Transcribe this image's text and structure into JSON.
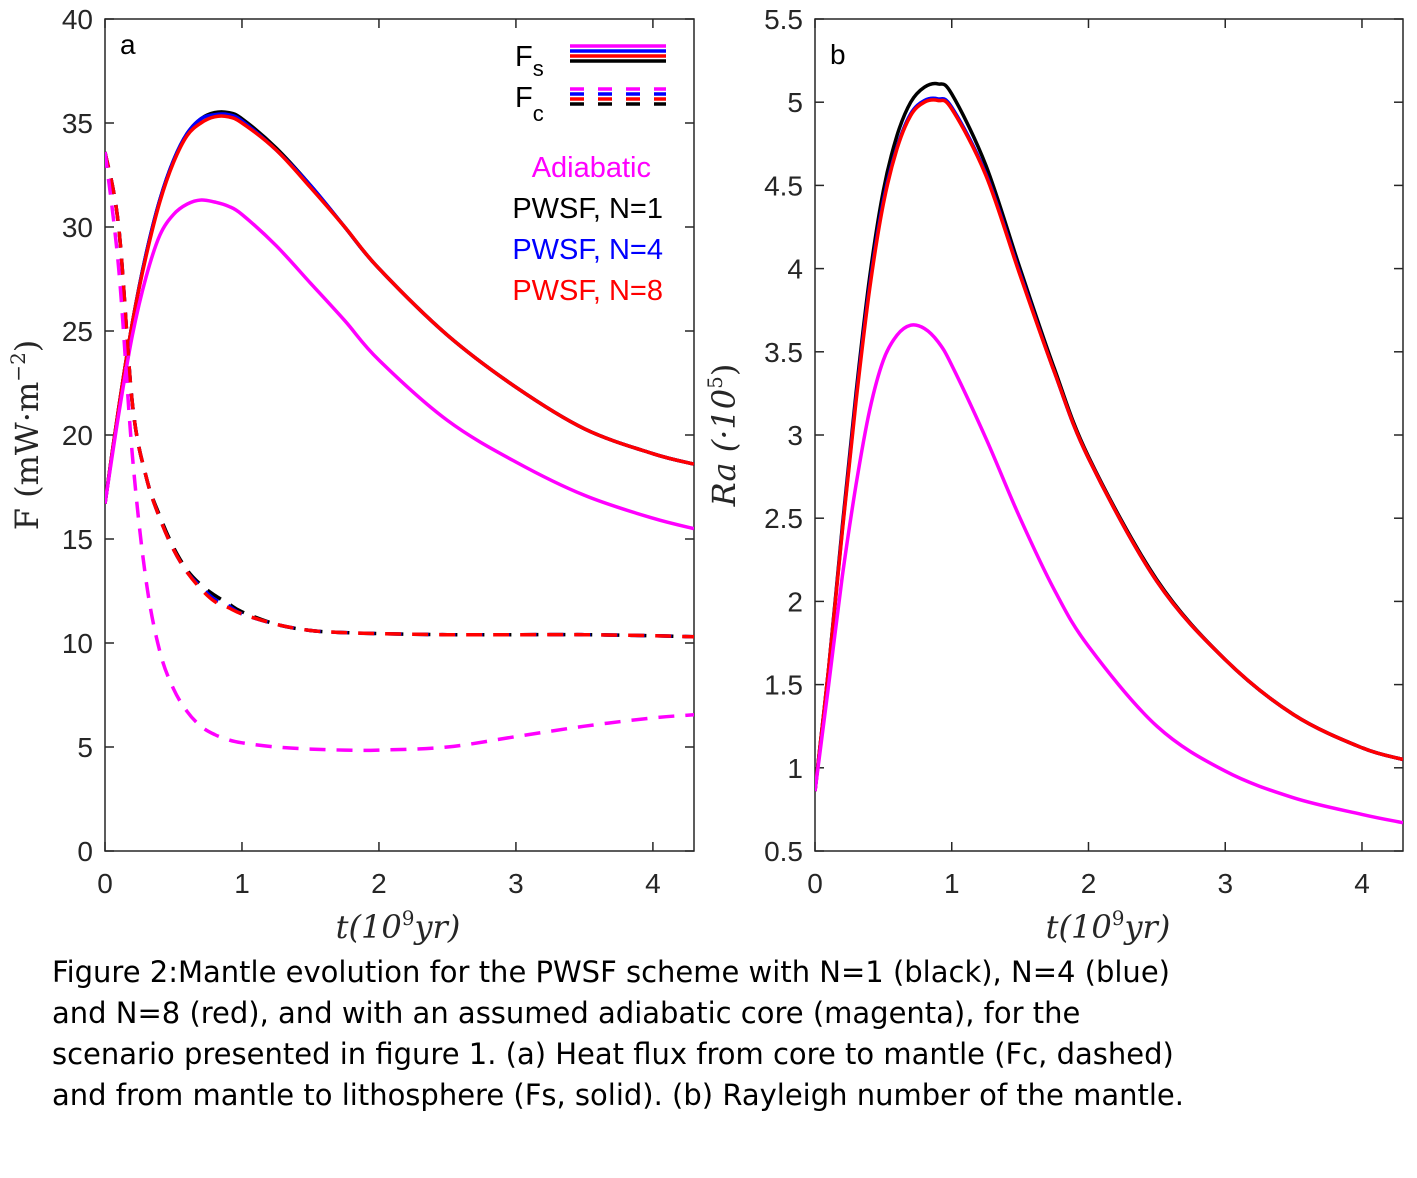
{
  "legend": {
    "fs_symbol": "F",
    "fs_sub": "s",
    "fc_symbol": "F",
    "fc_sub": "c",
    "entries": [
      {
        "label": "Adiabatic",
        "color": "#ff00ff"
      },
      {
        "label": "PWSF, N=1",
        "color": "#000000"
      },
      {
        "label": "PWSF, N=4",
        "color": "#0000ff"
      },
      {
        "label": "PWSF, N=8",
        "color": "#ff0000"
      }
    ]
  },
  "chart_data": [
    {
      "type": "line",
      "panel": "a",
      "xlabel": "t(10^9 yr)",
      "ylabel": "F (mW·m^-2)",
      "xlim": [
        0,
        4.3
      ],
      "ylim": [
        0,
        40
      ],
      "xticks": [
        "0",
        "1",
        "2",
        "3",
        "4"
      ],
      "yticks": [
        "0",
        "5",
        "10",
        "15",
        "20",
        "25",
        "30",
        "35",
        "40"
      ],
      "x": [
        0,
        0.1,
        0.2,
        0.3,
        0.4,
        0.5,
        0.6,
        0.7,
        0.8,
        0.9,
        1.0,
        1.25,
        1.5,
        1.75,
        2.0,
        2.5,
        3.0,
        3.5,
        4.0,
        4.3
      ],
      "series": [
        {
          "name": "PWSF, N=1",
          "quantity": "Fs",
          "style": "solid",
          "color": "#000000",
          "values": [
            16.7,
            21.3,
            25.4,
            28.7,
            31.3,
            33.2,
            34.5,
            35.2,
            35.5,
            35.5,
            35.2,
            33.8,
            32.0,
            30.0,
            28.0,
            24.8,
            22.3,
            20.3,
            19.1,
            18.6
          ]
        },
        {
          "name": "PWSF, N=4",
          "quantity": "Fs",
          "style": "solid",
          "color": "#0000ff",
          "values": [
            16.7,
            21.3,
            25.4,
            28.7,
            31.3,
            33.2,
            34.5,
            35.2,
            35.4,
            35.4,
            35.1,
            33.7,
            32.0,
            30.0,
            28.0,
            24.8,
            22.3,
            20.3,
            19.1,
            18.6
          ]
        },
        {
          "name": "PWSF, N=8",
          "quantity": "Fs",
          "style": "solid",
          "color": "#ff0000",
          "values": [
            16.7,
            21.3,
            25.4,
            28.6,
            31.2,
            33.1,
            34.4,
            35.0,
            35.3,
            35.3,
            35.0,
            33.7,
            31.9,
            30.0,
            28.0,
            24.8,
            22.3,
            20.3,
            19.1,
            18.6
          ]
        },
        {
          "name": "Adiabatic",
          "quantity": "Fs",
          "style": "solid",
          "color": "#ff00ff",
          "values": [
            16.7,
            21.0,
            24.8,
            27.6,
            29.6,
            30.6,
            31.1,
            31.3,
            31.2,
            31.0,
            30.6,
            29.1,
            27.3,
            25.5,
            23.6,
            20.7,
            18.7,
            17.1,
            16.0,
            15.5
          ]
        },
        {
          "name": "PWSF, N=1",
          "quantity": "Fc",
          "style": "dashed",
          "color": "#000000",
          "values": [
            33.6,
            30.0,
            21.5,
            18.0,
            16.1,
            14.6,
            13.5,
            12.8,
            12.3,
            11.9,
            11.5,
            10.9,
            10.6,
            10.5,
            10.45,
            10.4,
            10.4,
            10.4,
            10.35,
            10.3
          ]
        },
        {
          "name": "PWSF, N=4",
          "quantity": "Fc",
          "style": "dashed",
          "color": "#0000ff",
          "values": [
            33.6,
            30.0,
            21.5,
            18.0,
            16.0,
            14.5,
            13.4,
            12.7,
            12.1,
            11.8,
            11.4,
            10.9,
            10.6,
            10.5,
            10.45,
            10.4,
            10.4,
            10.4,
            10.35,
            10.3
          ]
        },
        {
          "name": "PWSF, N=8",
          "quantity": "Fc",
          "style": "dashed",
          "color": "#ff0000",
          "values": [
            33.6,
            30.0,
            21.5,
            18.0,
            16.0,
            14.5,
            13.4,
            12.6,
            12.0,
            11.7,
            11.4,
            10.9,
            10.6,
            10.5,
            10.45,
            10.4,
            10.4,
            10.4,
            10.35,
            10.3
          ]
        },
        {
          "name": "Adiabatic",
          "quantity": "Fc",
          "style": "dashed",
          "color": "#ff00ff",
          "values": [
            33.6,
            28.0,
            19.0,
            13.0,
            9.6,
            7.8,
            6.7,
            6.0,
            5.6,
            5.35,
            5.2,
            5.0,
            4.9,
            4.85,
            4.85,
            5.0,
            5.5,
            6.0,
            6.4,
            6.55
          ]
        }
      ]
    },
    {
      "type": "line",
      "panel": "b",
      "xlabel": "t(10^9 yr)",
      "ylabel": "Ra (·10^5)",
      "xlim": [
        0,
        4.3
      ],
      "ylim": [
        0.5,
        5.5
      ],
      "xticks": [
        "0",
        "1",
        "2",
        "3",
        "4"
      ],
      "yticks": [
        "0.5",
        "1",
        "1.5",
        "2",
        "2.5",
        "3",
        "3.5",
        "4",
        "4.5",
        "5",
        "5.5"
      ],
      "x": [
        0,
        0.1,
        0.2,
        0.3,
        0.4,
        0.5,
        0.6,
        0.7,
        0.8,
        0.9,
        1.0,
        1.25,
        1.5,
        1.75,
        2.0,
        2.5,
        3.0,
        3.5,
        4.0,
        4.3
      ],
      "series": [
        {
          "name": "PWSF, N=1",
          "color": "#000000",
          "values": [
            0.86,
            1.6,
            2.45,
            3.25,
            3.95,
            4.47,
            4.8,
            5.0,
            5.09,
            5.11,
            5.05,
            4.62,
            4.0,
            3.4,
            2.87,
            2.13,
            1.65,
            1.32,
            1.12,
            1.05
          ]
        },
        {
          "name": "PWSF, N=4",
          "color": "#0000ff",
          "values": [
            0.86,
            1.6,
            2.43,
            3.22,
            3.9,
            4.41,
            4.73,
            4.93,
            5.01,
            5.02,
            4.97,
            4.57,
            3.97,
            3.38,
            2.86,
            2.12,
            1.65,
            1.32,
            1.12,
            1.05
          ]
        },
        {
          "name": "PWSF, N=8",
          "color": "#ff0000",
          "values": [
            0.86,
            1.6,
            2.42,
            3.2,
            3.88,
            4.39,
            4.72,
            4.92,
            5.0,
            5.01,
            4.96,
            4.56,
            3.96,
            3.38,
            2.86,
            2.12,
            1.65,
            1.32,
            1.12,
            1.05
          ]
        },
        {
          "name": "Adiabatic",
          "color": "#ff00ff",
          "values": [
            0.86,
            1.5,
            2.15,
            2.7,
            3.15,
            3.45,
            3.6,
            3.66,
            3.64,
            3.56,
            3.42,
            2.98,
            2.5,
            2.07,
            1.73,
            1.25,
            0.98,
            0.82,
            0.72,
            0.67
          ]
        }
      ]
    }
  ],
  "panels": {
    "a": {
      "tag": "a",
      "xlabel_main": "t(10",
      "xlabel_sup": "9",
      "xlabel_end": "yr)",
      "ylabel_main": "F (mW·m",
      "ylabel_sup": "−2",
      "ylabel_end": ")"
    },
    "b": {
      "tag": "b",
      "xlabel_main": "t(10",
      "xlabel_sup": "9",
      "xlabel_end": "yr)",
      "ylabel_main": "Ra (·10",
      "ylabel_sup": "5",
      "ylabel_end": ")"
    }
  },
  "caption": {
    "lines": [
      "Figure 2:Mantle evolution for the PWSF scheme  with N=1 (black), N=4 (blue)",
      "and N=8 (red), and with an assumed adiabatic core (magenta), for the",
      "scenario presented in figure 1.  (a) Heat flux from core to mantle (Fc, dashed)",
      "and from mantle to lithosphere (Fs, solid). (b) Rayleigh number of the mantle."
    ]
  }
}
